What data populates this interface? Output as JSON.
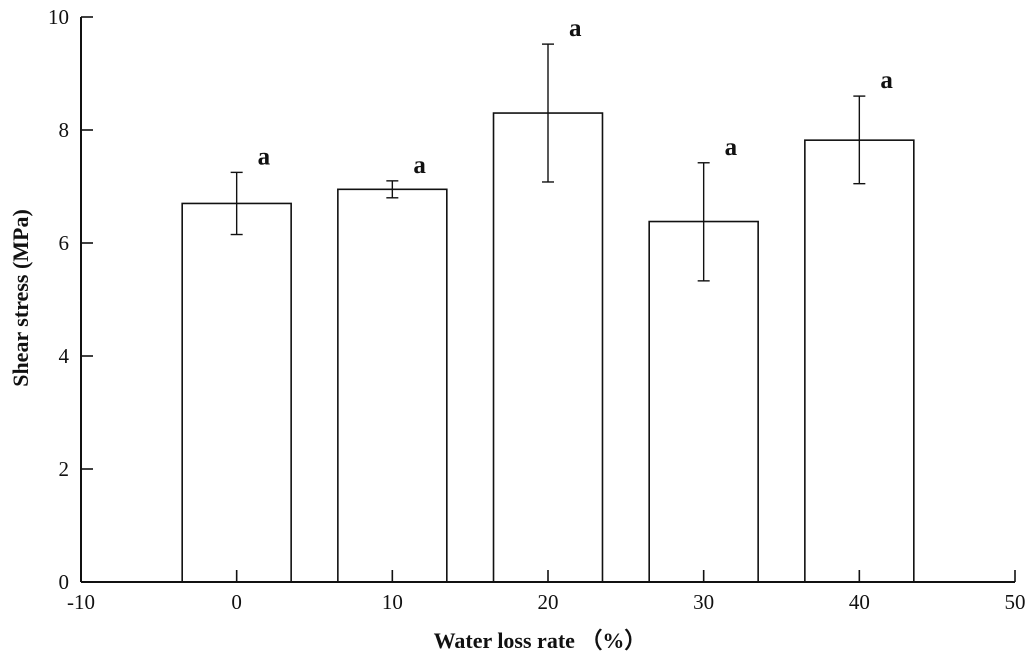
{
  "chart_data": {
    "type": "bar",
    "xlabel": "Water loss rate （%）",
    "ylabel": "Shear stress (MPa)",
    "xlim": [
      -10,
      50
    ],
    "ylim": [
      0,
      10
    ],
    "x_ticks": [
      -10,
      0,
      10,
      20,
      30,
      40,
      50
    ],
    "y_ticks": [
      0,
      2,
      4,
      6,
      8,
      10
    ],
    "bar_width": 7,
    "grid": false,
    "x": [
      0,
      10,
      20,
      30,
      40
    ],
    "values": [
      6.7,
      6.95,
      8.3,
      6.38,
      7.82
    ],
    "error": [
      [
        6.15,
        7.25
      ],
      [
        6.8,
        7.1
      ],
      [
        7.08,
        9.52
      ],
      [
        5.33,
        7.42
      ],
      [
        7.05,
        8.6
      ]
    ],
    "significance": [
      "a",
      "a",
      "a",
      "a",
      "a"
    ]
  }
}
